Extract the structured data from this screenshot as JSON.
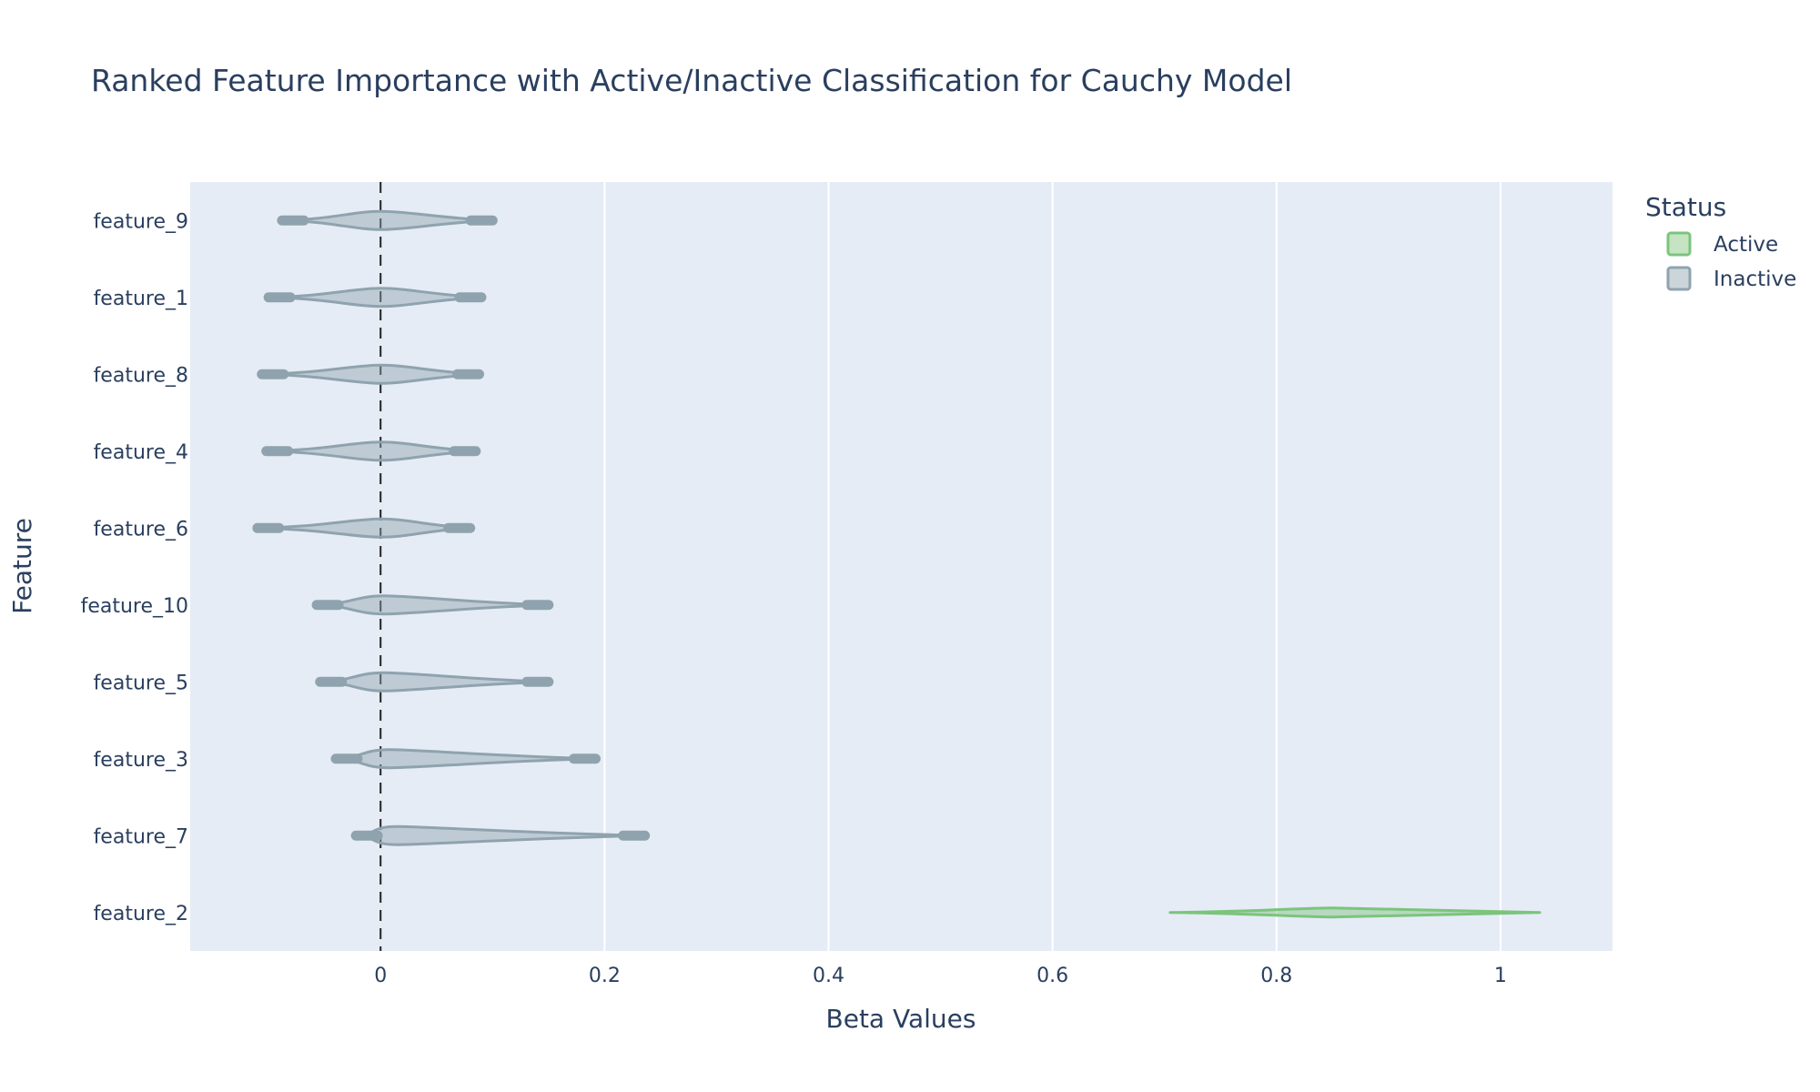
{
  "chart_data": {
    "type": "violin",
    "orientation": "horizontal",
    "title": "Ranked Feature Importance with Active/Inactive Classification for Cauchy Model",
    "xlabel": "Beta Values",
    "ylabel": "Feature",
    "xlim": [
      -0.17,
      1.1
    ],
    "xticks": [
      0,
      0.2,
      0.4,
      0.6,
      0.8,
      1
    ],
    "xtick_labels": [
      "0",
      "0.2",
      "0.4",
      "0.6",
      "0.8",
      "1"
    ],
    "grid": true,
    "reference_line": {
      "x": 0,
      "style": "dashed"
    },
    "categories": [
      "feature_9",
      "feature_1",
      "feature_8",
      "feature_4",
      "feature_6",
      "feature_10",
      "feature_5",
      "feature_3",
      "feature_7",
      "feature_2"
    ],
    "legend": {
      "title": "Status",
      "placement": "top-right",
      "items": [
        {
          "name": "Active",
          "color": "#7cc47c"
        },
        {
          "name": "Inactive",
          "color": "#8fa3ae"
        }
      ]
    },
    "series": [
      {
        "name": "Active",
        "color": "#7cc47c",
        "violins": [
          {
            "feature": "feature_2",
            "min": 0.705,
            "max": 1.035,
            "peak": 0.85
          }
        ]
      },
      {
        "name": "Inactive",
        "color": "#8fa3ae",
        "violins": [
          {
            "feature": "feature_9",
            "min": -0.088,
            "max": 0.1,
            "peak": 0.0
          },
          {
            "feature": "feature_1",
            "min": -0.1,
            "max": 0.09,
            "peak": 0.0
          },
          {
            "feature": "feature_8",
            "min": -0.106,
            "max": 0.088,
            "peak": 0.0
          },
          {
            "feature": "feature_4",
            "min": -0.102,
            "max": 0.085,
            "peak": 0.0
          },
          {
            "feature": "feature_6",
            "min": -0.11,
            "max": 0.08,
            "peak": 0.0
          },
          {
            "feature": "feature_10",
            "min": -0.057,
            "max": 0.15,
            "peak": 0.003
          },
          {
            "feature": "feature_5",
            "min": -0.054,
            "max": 0.15,
            "peak": 0.003
          },
          {
            "feature": "feature_3",
            "min": -0.04,
            "max": 0.192,
            "peak": 0.008
          },
          {
            "feature": "feature_7",
            "min": -0.022,
            "max": 0.236,
            "peak": 0.015
          }
        ]
      }
    ]
  }
}
